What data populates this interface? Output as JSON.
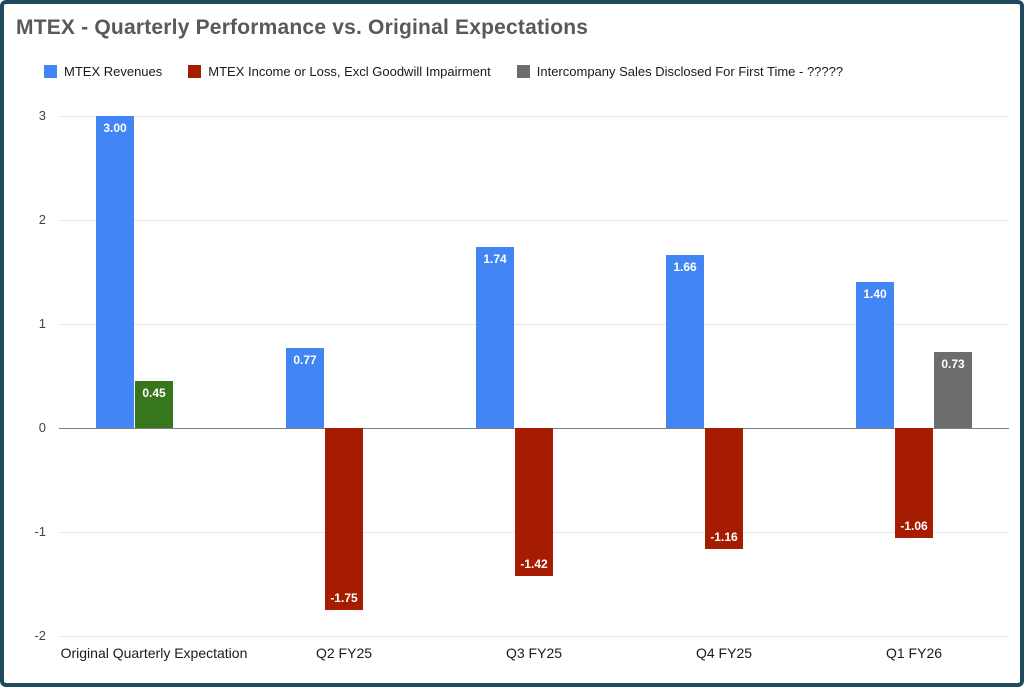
{
  "frame": {
    "border_color": "#1d4a5e"
  },
  "title": "MTEX - Quarterly Performance vs. Original Expectations",
  "legend": [
    {
      "label": "MTEX Revenues",
      "color": "#4285f4"
    },
    {
      "label": "MTEX Income or Loss, Excl Goodwill Impairment",
      "color": "#a61c00"
    },
    {
      "label": "Intercompany Sales Disclosed For First Time - ?????",
      "color": "#6d6d6d"
    }
  ],
  "chart_data": {
    "type": "bar",
    "title": "MTEX - Quarterly Performance vs. Original Expectations",
    "categories": [
      "Original Quarterly Expectation",
      "Q2 FY25",
      "Q3 FY25",
      "Q4 FY25",
      "Q1 FY26"
    ],
    "series": [
      {
        "name": "MTEX Revenues",
        "color": "#4285f4",
        "values": [
          3.0,
          0.77,
          1.74,
          1.66,
          1.4
        ]
      },
      {
        "name": "MTEX Income or Loss, Excl Goodwill Impairment",
        "color": "#a61c00",
        "point_colors": [
          "#38761d",
          null,
          null,
          null,
          null
        ],
        "values": [
          0.45,
          -1.75,
          -1.42,
          -1.16,
          -1.06
        ]
      },
      {
        "name": "Intercompany Sales Disclosed For First Time - ?????",
        "color": "#6d6d6d",
        "values": [
          null,
          null,
          null,
          null,
          0.73
        ]
      }
    ],
    "ylim": [
      -2,
      3
    ],
    "yticks": [
      3,
      2,
      1,
      0,
      -1,
      -2
    ],
    "grid": true,
    "legend_position": "top",
    "value_label_format": "0.00"
  }
}
